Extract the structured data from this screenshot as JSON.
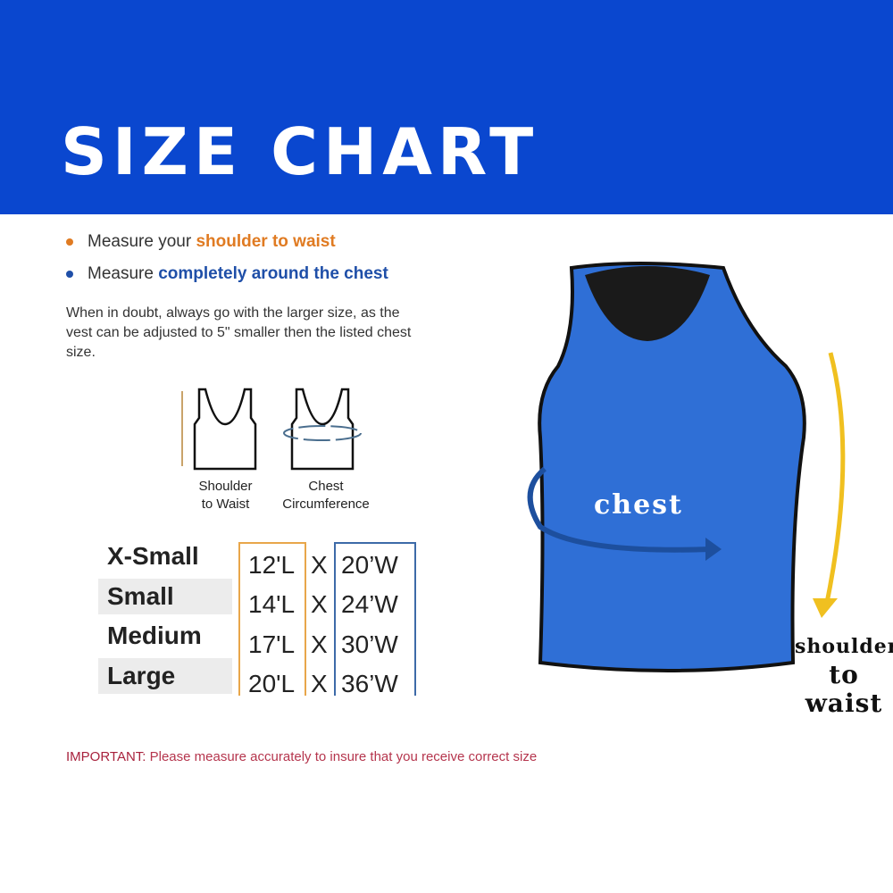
{
  "header": {
    "title": "SIZE CHART",
    "background": "#0a47cf"
  },
  "instructions": {
    "bullet1": {
      "prefix": "Measure your ",
      "highlight": "shoulder to waist",
      "color": "#e07b22"
    },
    "bullet2": {
      "prefix": "Measure ",
      "highlight": "completely around the chest",
      "color": "#1f4fa8"
    },
    "note": "When in doubt, always go with the larger size, as the vest can be adjusted to 5\" smaller then the listed chest size."
  },
  "diagrams": {
    "shoulder_caption_1": "Shoulder",
    "shoulder_caption_2": "to Waist",
    "chest_caption_1": "Chest",
    "chest_caption_2": "Circumference"
  },
  "size_table": {
    "separator": "X",
    "rows": [
      {
        "size": "X-Small",
        "length": "12'L",
        "width": "20’W"
      },
      {
        "size": "Small",
        "length": "14'L",
        "width": "24’W"
      },
      {
        "size": "Medium",
        "length": "17'L",
        "width": "30’W"
      },
      {
        "size": "Large",
        "length": "20'L",
        "width": "36’W"
      }
    ]
  },
  "important": {
    "label": "IMPORTANT:",
    "text": " Please measure accurately to insure that you receive correct size"
  },
  "photo": {
    "chest_label": "chest",
    "shoulder_label_1": "shoulder",
    "shoulder_label_2": "to",
    "shoulder_label_3": "waist",
    "vest_color": "#2f6fd6"
  }
}
